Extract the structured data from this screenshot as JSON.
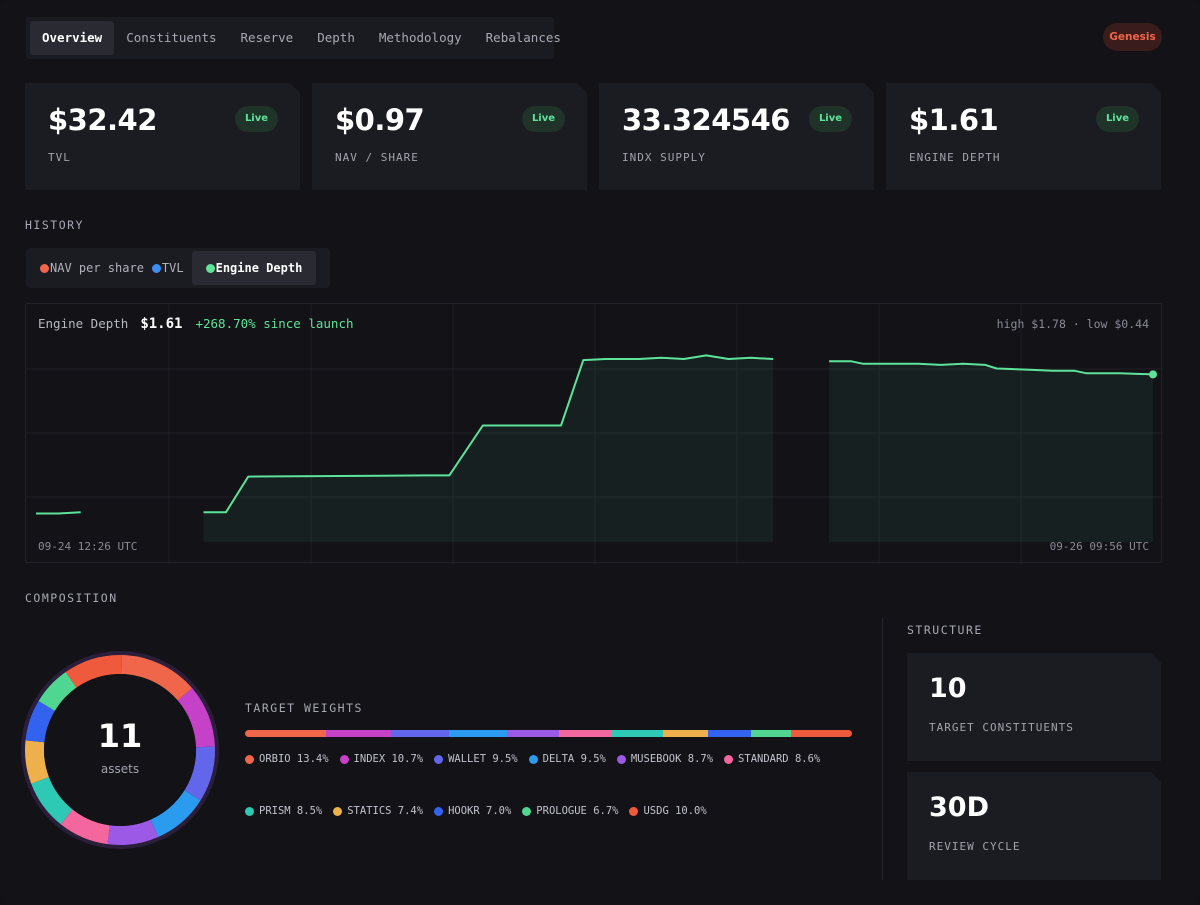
{
  "tabs": [
    "Overview",
    "Constituents",
    "Reserve",
    "Depth",
    "Methodology",
    "Rebalances"
  ],
  "active_tab": "Overview",
  "badge": "Genesis",
  "stats": [
    {
      "value": "$32.42",
      "label": "TVL",
      "status": "Live"
    },
    {
      "value": "$0.97",
      "label": "NAV / SHARE",
      "status": "Live"
    },
    {
      "value": "33.324546",
      "label": "INDX SUPPLY",
      "status": "Live"
    },
    {
      "value": "$1.61",
      "label": "ENGINE DEPTH",
      "status": "Live"
    }
  ],
  "history": {
    "title": "HISTORY",
    "series_toggles": [
      {
        "label": "NAV per share",
        "color": "#f0664a"
      },
      {
        "label": "TVL",
        "color": "#3b8ef0"
      },
      {
        "label": "Engine Depth",
        "color": "#5ee39a"
      }
    ],
    "active_series": "Engine Depth",
    "series_name": "Engine Depth",
    "current": "$1.61",
    "change": "+268.70% since launch",
    "high_low": "high $1.78 · low $0.44",
    "time_start": "09-24 12:26 UTC",
    "time_end": "09-26 09:56 UTC"
  },
  "chart_data": {
    "type": "line",
    "series": [
      {
        "name": "Engine Depth",
        "color": "#5ee39a",
        "segments": [
          [
            [
              0,
              0.44
            ],
            [
              2,
              0.44
            ],
            [
              4,
              0.45
            ]
          ],
          [
            [
              15,
              0.45
            ],
            [
              17,
              0.45
            ],
            [
              19,
              0.75
            ],
            [
              35,
              0.76
            ],
            [
              37,
              0.76
            ],
            [
              40,
              1.18
            ],
            [
              45,
              1.18
            ],
            [
              47,
              1.18
            ],
            [
              49,
              1.73
            ],
            [
              51,
              1.74
            ],
            [
              54,
              1.74
            ],
            [
              56,
              1.75
            ],
            [
              58,
              1.74
            ],
            [
              60,
              1.77
            ],
            [
              62,
              1.74
            ],
            [
              64,
              1.75
            ],
            [
              66,
              1.74
            ]
          ],
          [
            [
              71,
              1.72
            ],
            [
              73,
              1.72
            ],
            [
              74,
              1.7
            ],
            [
              79,
              1.7
            ],
            [
              81,
              1.69
            ],
            [
              83,
              1.7
            ],
            [
              85,
              1.69
            ],
            [
              86,
              1.66
            ],
            [
              89,
              1.65
            ],
            [
              91,
              1.64
            ],
            [
              93,
              1.64
            ],
            [
              94,
              1.62
            ],
            [
              97,
              1.62
            ],
            [
              100,
              1.61
            ]
          ]
        ]
      }
    ],
    "ylim": [
      0.2,
      1.95
    ],
    "xlim": [
      0,
      100
    ],
    "grid": true
  },
  "composition": {
    "title": "COMPOSITION",
    "asset_count": "11",
    "asset_label": "assets",
    "weights_title": "TARGET WEIGHTS",
    "weights": [
      {
        "name": "ORBIO",
        "pct": 13.4,
        "label": "ORBIO 13.4%",
        "color": "#f0664a"
      },
      {
        "name": "INDEX",
        "pct": 10.7,
        "label": "INDEX 10.7%",
        "color": "#c542c8"
      },
      {
        "name": "WALLET",
        "pct": 9.5,
        "label": "WALLET 9.5%",
        "color": "#6266ea"
      },
      {
        "name": "DELTA",
        "pct": 9.5,
        "label": "DELTA 9.5%",
        "color": "#2b9bef"
      },
      {
        "name": "MUSEBOOK",
        "pct": 8.7,
        "label": "MUSEBOOK 8.7%",
        "color": "#9b59e6"
      },
      {
        "name": "STANDARD",
        "pct": 8.6,
        "label": "STANDARD 8.6%",
        "color": "#f4669e"
      },
      {
        "name": "PRISM",
        "pct": 8.5,
        "label": "PRISM 8.5%",
        "color": "#2ec9b5"
      },
      {
        "name": "STATICS",
        "pct": 7.4,
        "label": "STATICS 7.4%",
        "color": "#eeb04a"
      },
      {
        "name": "HOOKR",
        "pct": 7.0,
        "label": "HOOKR 7.0%",
        "color": "#3462f0"
      },
      {
        "name": "PROLOGUE",
        "pct": 6.7,
        "label": "PROLOGUE 6.7%",
        "color": "#4fd690"
      },
      {
        "name": "USDG",
        "pct": 10.0,
        "label": "USDG 10.0%",
        "color": "#ef5a3c"
      }
    ]
  },
  "structure": {
    "title": "STRUCTURE",
    "cards": [
      {
        "value": "10",
        "label": "TARGET CONSTITUENTS"
      },
      {
        "value": "30D",
        "label": "REVIEW CYCLE"
      }
    ]
  }
}
